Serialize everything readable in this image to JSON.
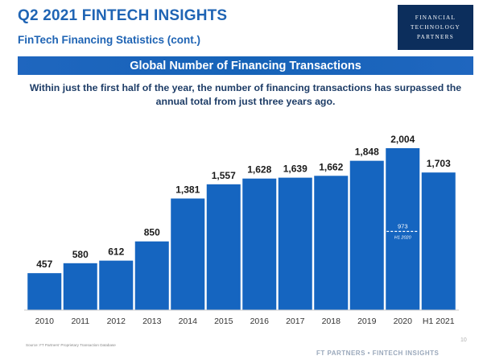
{
  "header": {
    "title": "Q2 2021 FINTECH INSIGHTS",
    "subtitle": "FinTech Financing Statistics (cont.)",
    "logo_lines": [
      "FINANCIAL",
      "TECHNOLOGY",
      "PARTNERS"
    ]
  },
  "banner": {
    "label": "Global Number of Financing Transactions"
  },
  "note": {
    "line1": "Within just the first half of the year, the number of financing transactions has surpassed the",
    "line2": "annual total from just three years ago."
  },
  "colors": {
    "bar": "#1565c0",
    "accent": "#1f64b4",
    "label": "#1a1a1a",
    "inset_text": "#ffffff"
  },
  "chart_data": {
    "type": "bar",
    "title": "",
    "xlabel": "",
    "ylabel": "",
    "categories": [
      "2010",
      "2011",
      "2012",
      "2013",
      "2014",
      "2015",
      "2016",
      "2017",
      "2018",
      "2019",
      "2020",
      "H1 2021"
    ],
    "values": [
      457,
      580,
      612,
      850,
      1381,
      1557,
      1628,
      1639,
      1662,
      1848,
      2004,
      1703
    ],
    "value_labels": [
      "457",
      "580",
      "612",
      "850",
      "1,381",
      "1,557",
      "1,628",
      "1,639",
      "1,662",
      "1,848",
      "2,004",
      "1,703"
    ],
    "ylim": [
      0,
      2004
    ],
    "grid": false,
    "annotation": {
      "category": "2020",
      "value": 973,
      "label": "973",
      "sublabel": "H1 2020",
      "style": "dashed-line"
    }
  },
  "footer": {
    "source": "Source: FT Partners' Proprietary Transaction Database",
    "page_number": "10",
    "brand": "FT PARTNERS • FINTECH INSIGHTS"
  }
}
